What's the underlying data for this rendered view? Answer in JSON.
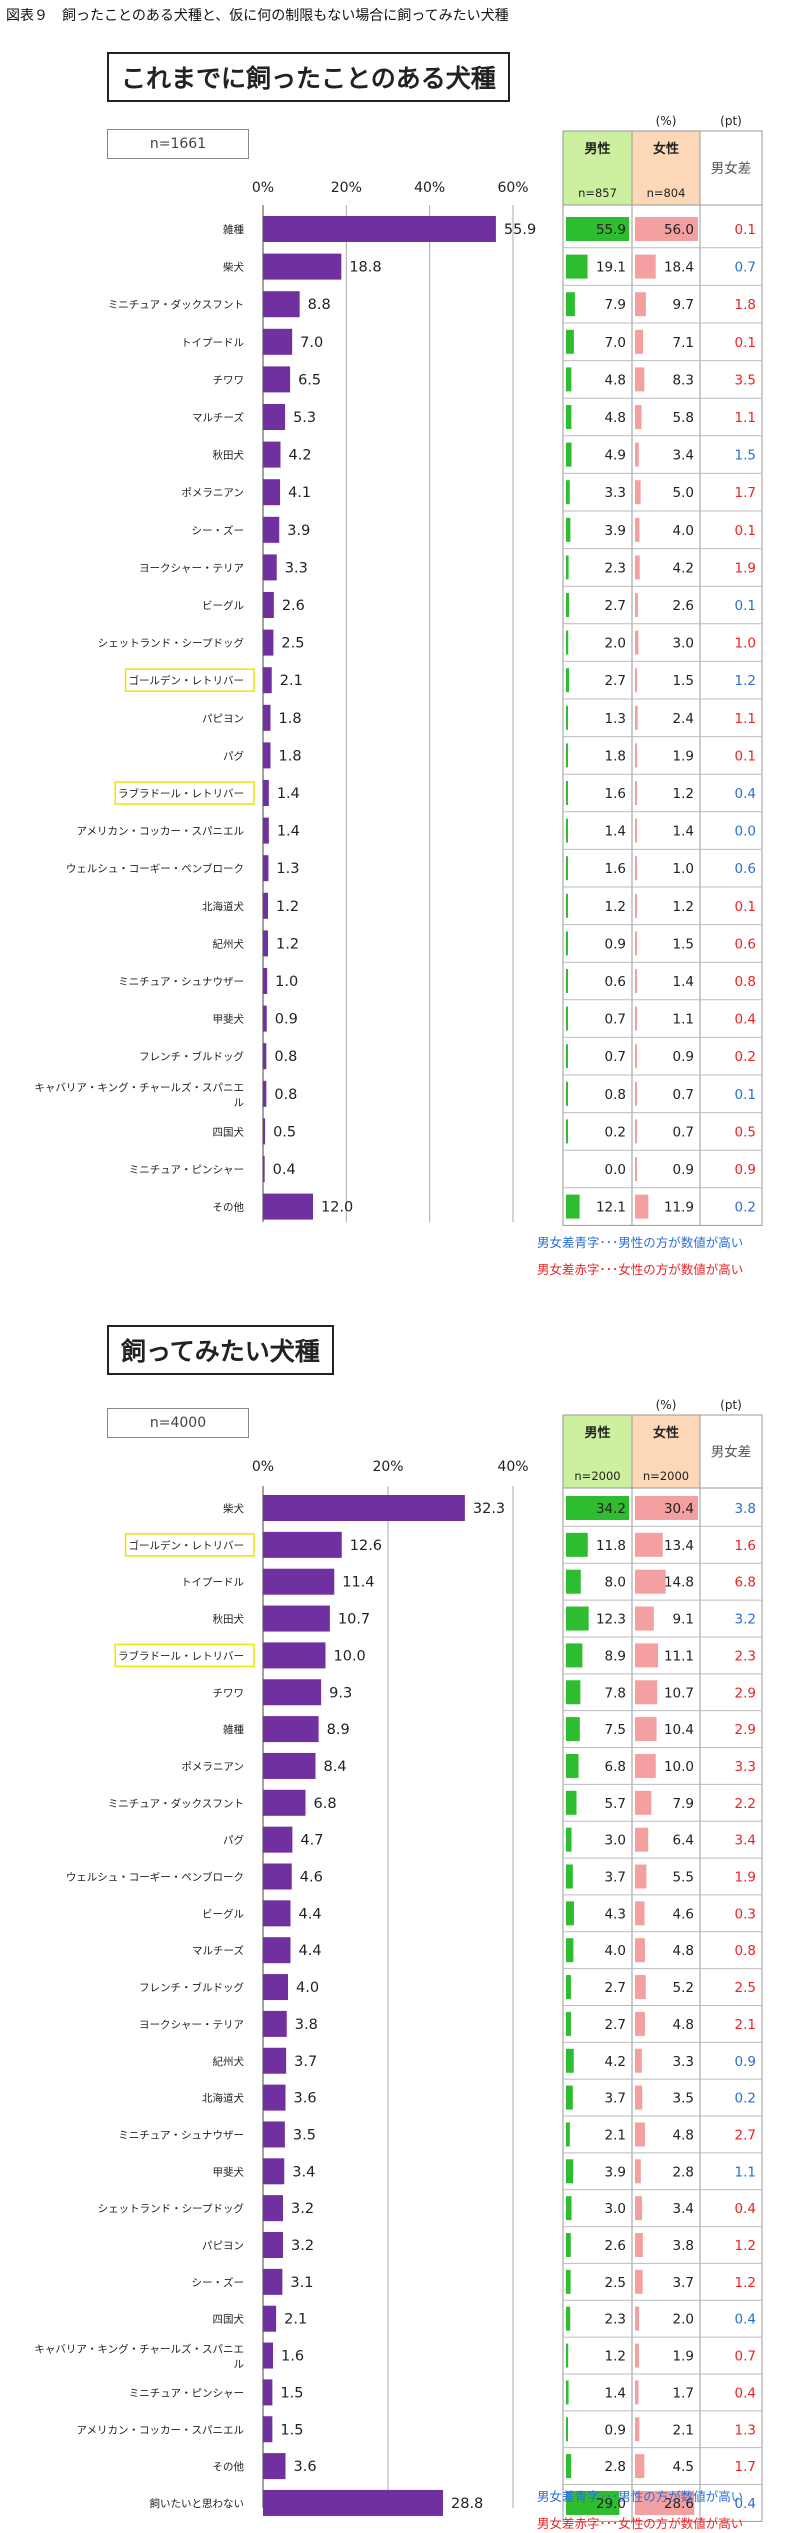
{
  "header": "図表９　飼ったことのある犬種と、仮に何の制限もない場合に飼ってみたい犬種",
  "colors": {
    "bar": "#7030a0",
    "male": "#2ebd2e",
    "female": "#f4a0a0",
    "male_hdr": "#ccf0a0",
    "female_hdr": "#fcd8b8",
    "blue": "#2a6fd6",
    "red": "#ee2222"
  },
  "chart_data": [
    {
      "type": "bar",
      "title": "これまでに飼ったことのある犬種",
      "n_label": "n=1661",
      "xlim": [
        0,
        60
      ],
      "ticks": [
        "0%",
        "20%",
        "40%",
        "60%"
      ],
      "categories": [
        "雑種",
        "柴犬",
        "ミニチュア・ダックスフント",
        "トイプードル",
        "チワワ",
        "マルチーズ",
        "秋田犬",
        "ポメラニアン",
        "シー・ズー",
        "ヨークシャー・テリア",
        "ビーグル",
        "シェットランド・シープドッグ",
        "ゴールデン・レトリバー",
        "パピヨン",
        "パグ",
        "ラブラドール・レトリバー",
        "アメリカン・コッカー・スパニエル",
        "ウェルシュ・コーギー・ペンブローク",
        "北海道犬",
        "紀州犬",
        "ミニチュア・シュナウザー",
        "甲斐犬",
        "フレンチ・ブルドッグ",
        "キャバリア・キング・チャールズ・スパニエル",
        "四国犬",
        "ミニチュア・ピンシャー",
        "その他"
      ],
      "label_lines": [
        [
          "雑種"
        ],
        [
          "柴犬"
        ],
        [
          "ミニチュア・ダックスフント"
        ],
        [
          "トイプードル"
        ],
        [
          "チワワ"
        ],
        [
          "マルチーズ"
        ],
        [
          "秋田犬"
        ],
        [
          "ポメラニアン"
        ],
        [
          "シー・ズー"
        ],
        [
          "ヨークシャー・テリア"
        ],
        [
          "ビーグル"
        ],
        [
          "シェットランド・シープドッグ"
        ],
        [
          "ゴールデン・レトリバー"
        ],
        [
          "パピヨン"
        ],
        [
          "パグ"
        ],
        [
          "ラブラドール・レトリバー"
        ],
        [
          "アメリカン・コッカー・スパニエル"
        ],
        [
          "ウェルシュ・コーギー・ペンブローク"
        ],
        [
          "北海道犬"
        ],
        [
          "紀州犬"
        ],
        [
          "ミニチュア・シュナウザー"
        ],
        [
          "甲斐犬"
        ],
        [
          "フレンチ・ブルドッグ"
        ],
        [
          "キャバリア・キング・チャールズ・スパニエ",
          "ル"
        ],
        [
          "四国犬"
        ],
        [
          "ミニチュア・ピンシャー"
        ],
        [
          "その他"
        ]
      ],
      "highlighted": [
        "ゴールデン・レトリバー",
        "ラブラドール・レトリバー"
      ],
      "values": [
        "55.9",
        "18.8",
        "8.8",
        "7.0",
        "6.5",
        "5.3",
        "4.2",
        "4.1",
        "3.9",
        "3.3",
        "2.6",
        "2.5",
        "2.1",
        "1.8",
        "1.8",
        "1.4",
        "1.4",
        "1.3",
        "1.2",
        "1.2",
        "1.0",
        "0.9",
        "0.8",
        "0.8",
        "0.5",
        "0.4",
        "12.0"
      ],
      "table": {
        "unit_pct": "(%)",
        "unit_pt": "(pt)",
        "male_header": "男性",
        "female_header": "女性",
        "diff_header": "男女差",
        "male_n": "n=857",
        "female_n": "n=804",
        "male": [
          "55.9",
          "19.1",
          "7.9",
          "7.0",
          "4.8",
          "4.8",
          "4.9",
          "3.3",
          "3.9",
          "2.3",
          "2.7",
          "2.0",
          "2.7",
          "1.3",
          "1.8",
          "1.6",
          "1.4",
          "1.6",
          "1.2",
          "0.9",
          "0.6",
          "0.7",
          "0.7",
          "0.8",
          "0.2",
          "0.0",
          "12.1"
        ],
        "female": [
          "56.0",
          "18.4",
          "9.7",
          "7.1",
          "8.3",
          "5.8",
          "3.4",
          "5.0",
          "4.0",
          "4.2",
          "2.6",
          "3.0",
          "1.5",
          "2.4",
          "1.9",
          "1.2",
          "1.4",
          "1.0",
          "1.2",
          "1.5",
          "1.4",
          "1.1",
          "0.9",
          "0.7",
          "0.7",
          "0.9",
          "11.9"
        ],
        "diff": [
          "0.1",
          "0.7",
          "1.8",
          "0.1",
          "3.5",
          "1.1",
          "1.5",
          "1.7",
          "0.1",
          "1.9",
          "0.1",
          "1.0",
          "1.2",
          "1.1",
          "0.1",
          "0.4",
          "0.0",
          "0.6",
          "0.1",
          "0.6",
          "0.8",
          "0.4",
          "0.2",
          "0.1",
          "0.5",
          "0.9",
          "0.2"
        ],
        "diff_color": [
          "red",
          "blue",
          "red",
          "red",
          "red",
          "red",
          "blue",
          "red",
          "red",
          "red",
          "blue",
          "red",
          "blue",
          "red",
          "red",
          "blue",
          "blue",
          "blue",
          "red",
          "red",
          "red",
          "red",
          "red",
          "blue",
          "red",
          "red",
          "blue"
        ]
      },
      "note_blue": "男女差青字･･･男性の方が数値が高い",
      "note_red": "男女差赤字･･･女性の方が数値が高い"
    },
    {
      "type": "bar",
      "title": "飼ってみたい犬種",
      "n_label": "n=4000",
      "xlim": [
        0,
        40
      ],
      "ticks": [
        "0%",
        "20%",
        "40%"
      ],
      "categories": [
        "柴犬",
        "ゴールデン・レトリバー",
        "トイプードル",
        "秋田犬",
        "ラブラドール・レトリバー",
        "チワワ",
        "雑種",
        "ポメラニアン",
        "ミニチュア・ダックスフント",
        "パグ",
        "ウェルシュ・コーギー・ペンブローク",
        "ビーグル",
        "マルチーズ",
        "フレンチ・ブルドッグ",
        "ヨークシャー・テリア",
        "紀州犬",
        "北海道犬",
        "ミニチュア・シュナウザー",
        "甲斐犬",
        "シェットランド・シープドッグ",
        "パピヨン",
        "シー・ズー",
        "四国犬",
        "キャバリア・キング・チャールズ・スパニエル",
        "ミニチュア・ピンシャー",
        "アメリカン・コッカー・スパニエル",
        "その他",
        "飼いたいと思わない"
      ],
      "label_lines": [
        [
          "柴犬"
        ],
        [
          "ゴールデン・レトリバー"
        ],
        [
          "トイプードル"
        ],
        [
          "秋田犬"
        ],
        [
          "ラブラドール・レトリバー"
        ],
        [
          "チワワ"
        ],
        [
          "雑種"
        ],
        [
          "ポメラニアン"
        ],
        [
          "ミニチュア・ダックスフント"
        ],
        [
          "パグ"
        ],
        [
          "ウェルシュ・コーギー・ペンブローク"
        ],
        [
          "ビーグル"
        ],
        [
          "マルチーズ"
        ],
        [
          "フレンチ・ブルドッグ"
        ],
        [
          "ヨークシャー・テリア"
        ],
        [
          "紀州犬"
        ],
        [
          "北海道犬"
        ],
        [
          "ミニチュア・シュナウザー"
        ],
        [
          "甲斐犬"
        ],
        [
          "シェットランド・シープドッグ"
        ],
        [
          "パピヨン"
        ],
        [
          "シー・ズー"
        ],
        [
          "四国犬"
        ],
        [
          "キャバリア・キング・チャールズ・スパニエ",
          "ル"
        ],
        [
          "ミニチュア・ピンシャー"
        ],
        [
          "アメリカン・コッカー・スパニエル"
        ],
        [
          "その他"
        ],
        [
          "飼いたいと思わない"
        ]
      ],
      "highlighted": [
        "ゴールデン・レトリバー",
        "ラブラドール・レトリバー"
      ],
      "values": [
        "32.3",
        "12.6",
        "11.4",
        "10.7",
        "10.0",
        "9.3",
        "8.9",
        "8.4",
        "6.8",
        "4.7",
        "4.6",
        "4.4",
        "4.4",
        "4.0",
        "3.8",
        "3.7",
        "3.6",
        "3.5",
        "3.4",
        "3.2",
        "3.2",
        "3.1",
        "2.1",
        "1.6",
        "1.5",
        "1.5",
        "3.6",
        "28.8"
      ],
      "table": {
        "unit_pct": "(%)",
        "unit_pt": "(pt)",
        "male_header": "男性",
        "female_header": "女性",
        "diff_header": "男女差",
        "male_n": "n=2000",
        "female_n": "n=2000",
        "male": [
          "34.2",
          "11.8",
          "8.0",
          "12.3",
          "8.9",
          "7.8",
          "7.5",
          "6.8",
          "5.7",
          "3.0",
          "3.7",
          "4.3",
          "4.0",
          "2.7",
          "2.7",
          "4.2",
          "3.7",
          "2.1",
          "3.9",
          "3.0",
          "2.6",
          "2.5",
          "2.3",
          "1.2",
          "1.4",
          "0.9",
          "2.8",
          "29.0"
        ],
        "female": [
          "30.4",
          "13.4",
          "14.8",
          "9.1",
          "11.1",
          "10.7",
          "10.4",
          "10.0",
          "7.9",
          "6.4",
          "5.5",
          "4.6",
          "4.8",
          "5.2",
          "4.8",
          "3.3",
          "3.5",
          "4.8",
          "2.8",
          "3.4",
          "3.8",
          "3.7",
          "2.0",
          "1.9",
          "1.7",
          "2.1",
          "4.5",
          "28.6"
        ],
        "diff": [
          "3.8",
          "1.6",
          "6.8",
          "3.2",
          "2.3",
          "2.9",
          "2.9",
          "3.3",
          "2.2",
          "3.4",
          "1.9",
          "0.3",
          "0.8",
          "2.5",
          "2.1",
          "0.9",
          "0.2",
          "2.7",
          "1.1",
          "0.4",
          "1.2",
          "1.2",
          "0.4",
          "0.7",
          "0.4",
          "1.3",
          "1.7",
          "0.4"
        ],
        "diff_color": [
          "blue",
          "red",
          "red",
          "blue",
          "red",
          "red",
          "red",
          "red",
          "red",
          "red",
          "red",
          "red",
          "red",
          "red",
          "red",
          "blue",
          "blue",
          "red",
          "blue",
          "red",
          "red",
          "red",
          "blue",
          "red",
          "red",
          "red",
          "red",
          "blue"
        ]
      },
      "note_blue": "男女差青字･･･男性の方が数値が高い",
      "note_red": "男女差赤字･･･女性の方が数値が高い"
    }
  ]
}
